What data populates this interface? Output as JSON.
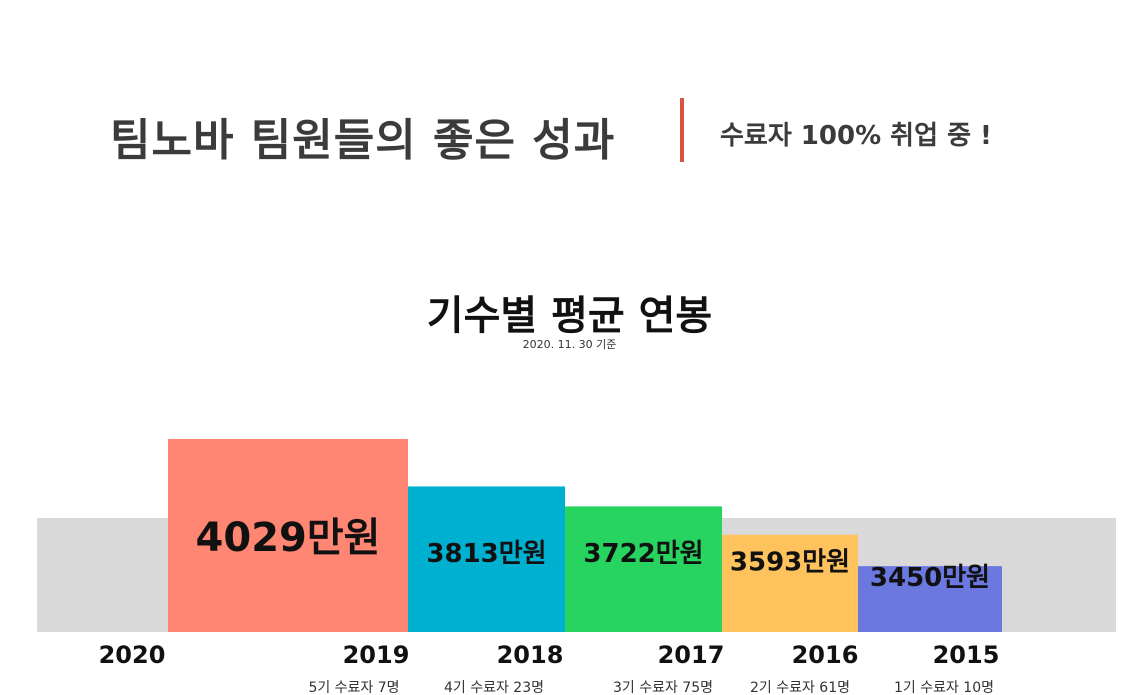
{
  "header": {
    "title": "팀노바 팀원들의 좋은 성과",
    "tagline": "수료자 100% 취업 중 !",
    "divider_color": "#d4563f"
  },
  "chart_data": {
    "type": "bar",
    "title": "기수별 평균 연봉",
    "subtitle": "2020. 11. 30 기준",
    "unit": "만원",
    "background_band_color": "#d9d9d9",
    "year_labels": [
      "2020",
      "2019",
      "2018",
      "2017",
      "2016",
      "2015"
    ],
    "categories": [
      "2019",
      "2018",
      "2017",
      "2016",
      "2015"
    ],
    "values": [
      4029,
      3813,
      3722,
      3593,
      3450
    ],
    "value_labels": [
      "4029만원",
      "3813만원",
      "3722만원",
      "3593만원",
      "3450만원"
    ],
    "cohort_labels": [
      "5기 수료자 7명",
      "4기 수료자 23명",
      "3기 수료자 75명",
      "2기 수료자 61명",
      "1기 수료자 10명"
    ],
    "colors": [
      "#ff8672",
      "#00b0d1",
      "#27d45f",
      "#ffc35e",
      "#6a78e0"
    ],
    "ylim": [
      3150,
      4029
    ]
  }
}
